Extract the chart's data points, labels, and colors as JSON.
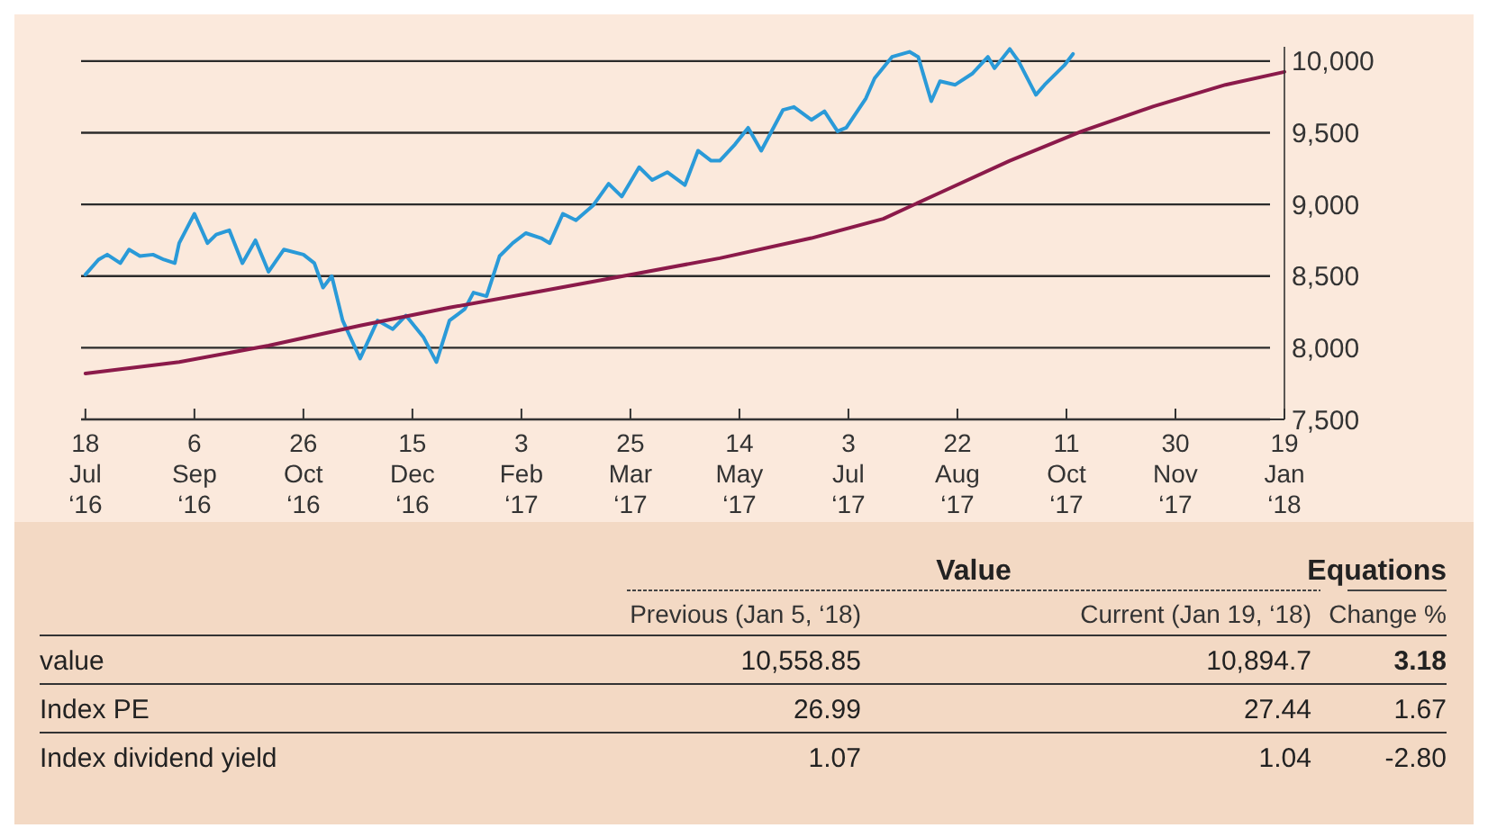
{
  "chart_data": {
    "type": "line",
    "x": [
      "2016-07-18",
      "2016-07-24",
      "2016-07-28",
      "2016-08-03",
      "2016-08-07",
      "2016-08-12",
      "2016-08-18",
      "2016-08-23",
      "2016-08-28",
      "2016-08-30",
      "2016-09-06",
      "2016-09-12",
      "2016-09-16",
      "2016-09-22",
      "2016-09-28",
      "2016-10-04",
      "2016-10-10",
      "2016-10-17",
      "2016-10-26",
      "2016-10-31",
      "2016-11-04",
      "2016-11-08",
      "2016-11-13",
      "2016-11-21",
      "2016-11-29",
      "2016-12-06",
      "2016-12-12",
      "2016-12-20",
      "2016-12-26",
      "2017-01-01",
      "2017-01-08",
      "2017-01-12",
      "2017-01-18",
      "2017-01-24",
      "2017-01-30",
      "2017-02-05",
      "2017-02-12",
      "2017-02-16",
      "2017-02-22",
      "2017-02-28",
      "2017-03-08",
      "2017-03-15",
      "2017-03-21",
      "2017-03-29",
      "2017-04-04",
      "2017-04-11",
      "2017-04-19",
      "2017-04-25",
      "2017-05-01",
      "2017-05-05",
      "2017-05-12",
      "2017-05-18",
      "2017-05-24",
      "2017-06-03",
      "2017-06-08",
      "2017-06-16",
      "2017-06-22",
      "2017-06-28",
      "2017-07-02",
      "2017-07-11",
      "2017-07-15",
      "2017-07-23",
      "2017-07-31",
      "2017-08-04",
      "2017-08-10",
      "2017-08-14",
      "2017-08-21",
      "2017-08-29",
      "2017-09-05",
      "2017-09-08",
      "2017-09-15",
      "2017-09-19",
      "2017-09-27",
      "2017-10-01",
      "2017-10-10",
      "2017-10-14"
    ],
    "series": [
      {
        "color": "#2a9ad8",
        "values": [
          8510,
          8615,
          8650,
          8590,
          8685,
          8640,
          8650,
          8615,
          8590,
          8730,
          8935,
          8730,
          8790,
          8820,
          8590,
          8750,
          8530,
          8685,
          8650,
          8590,
          8420,
          8500,
          8190,
          7925,
          8190,
          8130,
          8225,
          8075,
          7900,
          8190,
          8270,
          8385,
          8360,
          8640,
          8730,
          8800,
          8765,
          8730,
          8935,
          8890,
          8995,
          9145,
          9055,
          9260,
          9170,
          9225,
          9135,
          9375,
          9305,
          9305,
          9420,
          9535,
          9375,
          9660,
          9680,
          9590,
          9650,
          9510,
          9535,
          9740,
          9880,
          10030,
          10065,
          10030,
          9720,
          9860,
          9835,
          9915,
          10030,
          9950,
          10085,
          10000,
          9765,
          9835,
          9970,
          10050
        ]
      },
      {
        "color": "#8b1a4a",
        "x": [
          "2016-07-18",
          "2016-08-30",
          "2016-10-10",
          "2016-11-21",
          "2017-01-01",
          "2017-02-12",
          "2017-03-25",
          "2017-05-05",
          "2017-06-16",
          "2017-07-19",
          "2017-08-13",
          "2017-09-15",
          "2017-10-18",
          "2017-11-20",
          "2017-12-23",
          "2018-01-19"
        ],
        "values": [
          7820,
          7900,
          8015,
          8155,
          8280,
          8395,
          8510,
          8625,
          8765,
          8900,
          9075,
          9305,
          9510,
          9685,
          9835,
          9925
        ]
      }
    ],
    "xlim": [
      "2016-07-16",
      "2018-01-19"
    ],
    "xticks": [
      {
        "value": "2016-07-18",
        "label": "18\nJul\n‘16"
      },
      {
        "value": "2016-09-06",
        "label": "6\nSep\n‘16"
      },
      {
        "value": "2016-10-26",
        "label": "26\nOct\n‘16"
      },
      {
        "value": "2016-12-15",
        "label": "15\nDec\n‘16"
      },
      {
        "value": "2017-02-03",
        "label": "3\nFeb\n‘17"
      },
      {
        "value": "2017-03-25",
        "label": "25\nMar\n‘17"
      },
      {
        "value": "2017-05-14",
        "label": "14\nMay\n‘17"
      },
      {
        "value": "2017-07-03",
        "label": "3\nJul\n‘17"
      },
      {
        "value": "2017-08-22",
        "label": "22\nAug\n‘17"
      },
      {
        "value": "2017-10-11",
        "label": "11\nOct\n‘17"
      },
      {
        "value": "2017-11-30",
        "label": "30\nNov\n‘17"
      },
      {
        "value": "2018-01-19",
        "label": "19\nJan\n‘18"
      }
    ],
    "ylim": [
      7500,
      10100
    ],
    "yticks": [
      {
        "value": 7500,
        "label": "7,500"
      },
      {
        "value": 8000,
        "label": "8,000"
      },
      {
        "value": 8500,
        "label": "8,500"
      },
      {
        "value": 9000,
        "label": "9,000"
      },
      {
        "value": 9500,
        "label": "9,500"
      },
      {
        "value": 10000,
        "label": "10,000"
      }
    ],
    "grid": "y",
    "marker": "none",
    "line_style": "solid",
    "annotations": [
      "Value",
      "Equations",
      "Previous (Jan 5, ‘18)",
      "Current (Jan 19, ‘18)",
      "Change %",
      "value",
      "10,558.85",
      "10,894.7",
      "3.18",
      "Index PE",
      "26.99",
      "27.44",
      "1.67",
      "Index dividend yield",
      "1.07",
      "1.04",
      "-2.80"
    ]
  }
}
